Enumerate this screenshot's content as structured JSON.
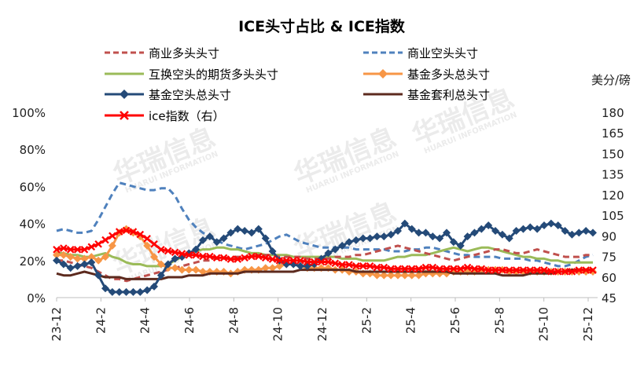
{
  "chart_data": {
    "type": "line",
    "title": "ICE头寸占比 & ICE指数",
    "right_unit": "美分/磅",
    "watermark": [
      "华瑞信息",
      "HUARUI INFORMATION"
    ],
    "x_ticks": [
      "23-12",
      "24-2",
      "24-4",
      "24-6",
      "24-8",
      "24-10",
      "24-12",
      "25-2",
      "25-4",
      "25-6",
      "25-8",
      "25-10",
      "25-12"
    ],
    "y_left": {
      "min": 0,
      "max": 100,
      "step": 20,
      "ticks": [
        "0%",
        "20%",
        "40%",
        "60%",
        "80%",
        "100%"
      ]
    },
    "y_right": {
      "min": 45,
      "max": 180,
      "step": 15,
      "ticks": [
        "45",
        "60",
        "75",
        "90",
        "105",
        "120",
        "135",
        "150",
        "165",
        "180"
      ]
    },
    "legend_position": "top",
    "series": [
      {
        "name": "商业多头头寸",
        "axis": "left",
        "color": "#c0504d",
        "style": "dash",
        "values": [
          20,
          20,
          19,
          18,
          17,
          16,
          14,
          12,
          10,
          10,
          9,
          10,
          11,
          12,
          13,
          14,
          15,
          16,
          17,
          18,
          19,
          20,
          20,
          21,
          21,
          22,
          22,
          22,
          22,
          23,
          23,
          23,
          22,
          22,
          22,
          22,
          21,
          21,
          21,
          21,
          22,
          22,
          22,
          23,
          23,
          24,
          25,
          26,
          27,
          28,
          27,
          26,
          25,
          24,
          23,
          22,
          21,
          20,
          21,
          22,
          23,
          24,
          25,
          26,
          26,
          25,
          24,
          24,
          25,
          26,
          25,
          24,
          23,
          22,
          22,
          22,
          23,
          23
        ]
      },
      {
        "name": "商业空头头寸",
        "axis": "left",
        "color": "#4f81bd",
        "style": "dash",
        "values": [
          36,
          37,
          36,
          35,
          35,
          36,
          42,
          49,
          56,
          62,
          61,
          60,
          59,
          58,
          58,
          59,
          59,
          55,
          48,
          42,
          38,
          35,
          33,
          31,
          29,
          28,
          27,
          26,
          27,
          28,
          29,
          31,
          33,
          34,
          32,
          30,
          29,
          28,
          27,
          27,
          27,
          27,
          27,
          26,
          26,
          26,
          26,
          26,
          25,
          25,
          25,
          26,
          26,
          27,
          27,
          26,
          25,
          24,
          23,
          23,
          22,
          22,
          22,
          22,
          21,
          21,
          21,
          21,
          20,
          20,
          19,
          18,
          17,
          17,
          18,
          20,
          22,
          23
        ]
      },
      {
        "name": "互换空头的期货多头头寸",
        "axis": "left",
        "color": "#9bbb59",
        "style": "solid",
        "values": [
          24,
          24,
          23,
          23,
          22,
          22,
          23,
          24,
          22,
          21,
          19,
          18,
          18,
          17,
          17,
          17,
          18,
          20,
          22,
          24,
          25,
          26,
          26,
          27,
          27,
          26,
          26,
          25,
          24,
          24,
          23,
          23,
          23,
          23,
          22,
          22,
          22,
          22,
          22,
          22,
          22,
          21,
          21,
          21,
          20,
          20,
          20,
          20,
          21,
          22,
          22,
          23,
          23,
          23,
          24,
          25,
          26,
          27,
          26,
          25,
          26,
          27,
          27,
          26,
          25,
          24,
          23,
          22,
          22,
          21,
          21,
          20,
          20,
          19,
          19,
          19,
          19,
          19
        ]
      },
      {
        "name": "基金多头总头寸",
        "axis": "left",
        "color": "#f79646",
        "style": "solid",
        "marker": "diamond",
        "values": [
          23,
          23,
          22,
          21,
          21,
          22,
          20,
          22,
          28,
          35,
          37,
          35,
          33,
          28,
          22,
          18,
          16,
          16,
          15,
          15,
          15,
          14,
          14,
          14,
          14,
          13,
          14,
          15,
          15,
          15,
          16,
          16,
          17,
          18,
          18,
          17,
          16,
          16,
          16,
          16,
          15,
          15,
          14,
          14,
          13,
          13,
          12,
          12,
          12,
          12,
          12,
          12,
          12,
          13,
          13,
          13,
          13,
          14,
          14,
          14,
          14,
          15,
          15,
          15,
          15,
          14,
          14,
          14,
          14,
          14,
          14,
          14,
          14,
          14,
          14,
          14,
          14,
          14
        ]
      },
      {
        "name": "基金空头总头寸",
        "axis": "left",
        "color": "#244a78",
        "style": "solid",
        "marker": "diamond",
        "values": [
          20,
          18,
          16,
          17,
          18,
          19,
          12,
          5,
          3,
          3,
          3,
          3,
          3,
          4,
          6,
          12,
          18,
          21,
          22,
          24,
          26,
          31,
          33,
          30,
          32,
          35,
          37,
          36,
          35,
          37,
          32,
          25,
          20,
          18,
          18,
          17,
          17,
          18,
          21,
          24,
          26,
          28,
          30,
          31,
          32,
          32,
          33,
          33,
          34,
          36,
          40,
          37,
          35,
          35,
          33,
          32,
          35,
          30,
          28,
          33,
          35,
          37,
          39,
          36,
          34,
          32,
          36,
          37,
          38,
          37,
          39,
          40,
          39,
          36,
          34,
          35,
          36,
          35
        ]
      },
      {
        "name": "基金套利总头寸",
        "axis": "left",
        "color": "#5c2a1e",
        "style": "solid",
        "values": [
          13,
          12,
          12,
          13,
          14,
          13,
          12,
          11,
          11,
          11,
          10,
          10,
          10,
          10,
          10,
          10,
          11,
          11,
          11,
          12,
          12,
          12,
          13,
          13,
          13,
          13,
          13,
          14,
          14,
          14,
          14,
          14,
          14,
          14,
          14,
          15,
          15,
          15,
          15,
          15,
          15,
          15,
          15,
          14,
          14,
          14,
          14,
          14,
          14,
          14,
          14,
          14,
          14,
          14,
          14,
          14,
          14,
          13,
          13,
          13,
          13,
          13,
          13,
          13,
          12,
          12,
          12,
          12,
          13,
          13,
          13,
          13,
          14,
          14,
          15,
          15,
          15,
          15
        ]
      },
      {
        "name": "ice指数（右）",
        "axis": "right",
        "color": "#ff0000",
        "style": "solid",
        "marker": "x",
        "values": [
          80,
          81,
          80,
          80,
          80,
          82,
          84,
          87,
          90,
          93,
          94,
          93,
          91,
          88,
          84,
          80,
          79,
          78,
          77,
          76,
          76,
          75,
          75,
          74,
          74,
          73,
          73,
          74,
          75,
          75,
          74,
          73,
          72,
          72,
          72,
          72,
          71,
          71,
          71,
          71,
          70,
          69,
          69,
          68,
          68,
          68,
          67,
          67,
          66,
          66,
          66,
          66,
          66,
          67,
          67,
          66,
          66,
          66,
          66,
          67,
          66,
          66,
          65,
          65,
          65,
          65,
          65,
          65,
          65,
          65,
          65,
          64,
          64,
          64,
          64,
          65,
          65,
          65
        ]
      }
    ]
  }
}
